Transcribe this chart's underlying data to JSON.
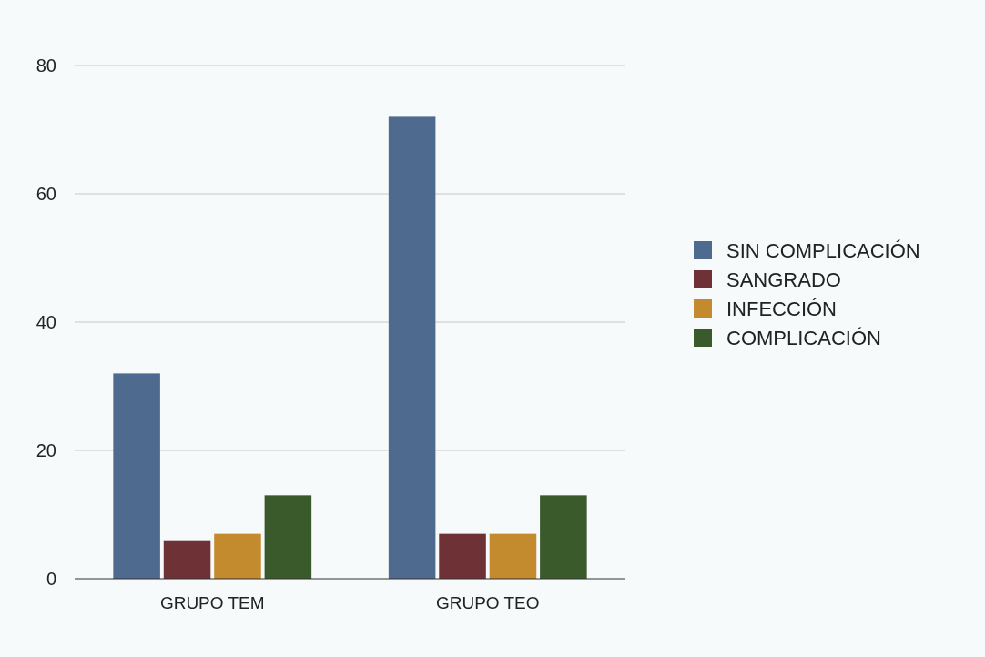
{
  "chart_data": {
    "type": "bar",
    "categories": [
      "GRUPO TEM",
      "GRUPO TEO"
    ],
    "series": [
      {
        "name": "SIN COMPLICACIÓN",
        "color": "#4e6a8e",
        "values": [
          32,
          72
        ]
      },
      {
        "name": "SANGRADO",
        "color": "#6e3135",
        "values": [
          6,
          7
        ]
      },
      {
        "name": "INFECCIÓN",
        "color": "#c48a2e",
        "values": [
          7,
          7
        ]
      },
      {
        "name": "COMPLICACIÓN",
        "color": "#3a5a2c",
        "values": [
          13,
          13
        ]
      }
    ],
    "ylim": [
      0,
      80
    ],
    "yticks": [
      0,
      20,
      40,
      60,
      80
    ],
    "grid": "y",
    "legend": "right"
  }
}
